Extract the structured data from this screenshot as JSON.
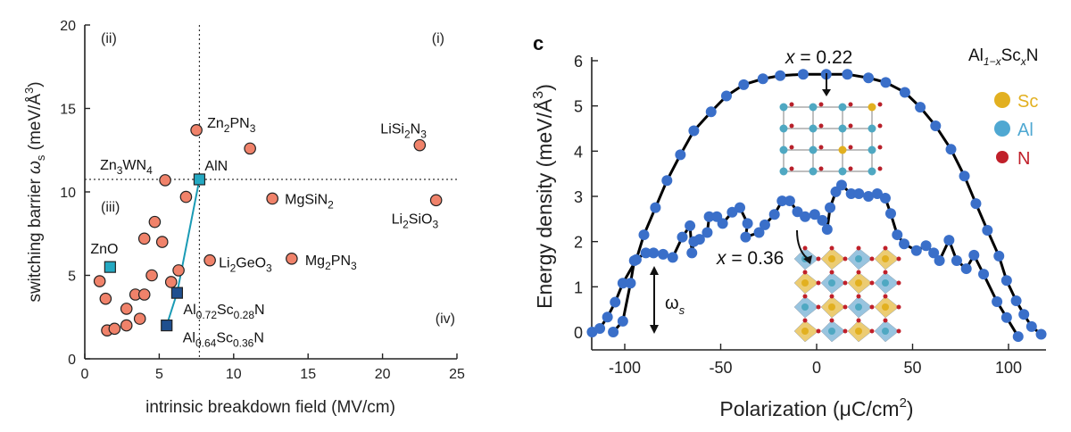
{
  "chart_data": [
    {
      "type": "scatter",
      "xlabel": "intrinsic breakdown field (MV/cm)",
      "ylabel_parts": {
        "pre": "switching barrier ",
        "symbol": "ω",
        "sub": "s",
        "unit_pre": " (meV/Å",
        "unit_sup": "3",
        "unit_post": ")"
      },
      "xlim": [
        0,
        25
      ],
      "ylim": [
        0,
        20
      ],
      "xticks": [
        0,
        5,
        10,
        15,
        20,
        25
      ],
      "yticks": [
        0,
        5,
        10,
        15,
        20
      ],
      "grid": false,
      "reference_lines": {
        "x": 7.7,
        "y": 10.75,
        "style": "dotted"
      },
      "quadrant_labels": [
        {
          "text": "(i)",
          "position": "top-right"
        },
        {
          "text": "(ii)",
          "position": "top-left"
        },
        {
          "text": "(iii)",
          "position": "middle-left"
        },
        {
          "text": "(iv)",
          "position": "bottom-right"
        }
      ],
      "colors": {
        "circle": "#f0826a",
        "aln_zno": "#24a9c2",
        "alscn": "#1f4f8f",
        "connector": "#1a9bb5"
      },
      "points": [
        {
          "x": 7.5,
          "y": 13.7,
          "label": "Zn2PN3",
          "marker": "circle"
        },
        {
          "x": 11.1,
          "y": 12.6,
          "marker": "circle"
        },
        {
          "x": 22.5,
          "y": 12.8,
          "label": "LiSi2N3",
          "marker": "circle"
        },
        {
          "x": 5.4,
          "y": 10.7,
          "label": "Zn3WN4",
          "marker": "circle"
        },
        {
          "x": 6.8,
          "y": 9.7,
          "marker": "circle"
        },
        {
          "x": 12.6,
          "y": 9.6,
          "label": "MgSiN2",
          "marker": "circle"
        },
        {
          "x": 23.6,
          "y": 9.5,
          "label": "Li2SiO3",
          "marker": "circle"
        },
        {
          "x": 4.7,
          "y": 8.2,
          "marker": "circle"
        },
        {
          "x": 4.0,
          "y": 7.2,
          "marker": "circle"
        },
        {
          "x": 5.2,
          "y": 7.0,
          "marker": "circle"
        },
        {
          "x": 8.4,
          "y": 5.9,
          "label": "Li2GeO3",
          "marker": "circle"
        },
        {
          "x": 13.9,
          "y": 6.0,
          "label": "Mg2PN3",
          "marker": "circle"
        },
        {
          "x": 4.5,
          "y": 5.0,
          "marker": "circle"
        },
        {
          "x": 6.3,
          "y": 5.3,
          "marker": "circle"
        },
        {
          "x": 5.8,
          "y": 4.6,
          "marker": "circle"
        },
        {
          "x": 1.0,
          "y": 4.65,
          "marker": "circle"
        },
        {
          "x": 1.4,
          "y": 3.6,
          "marker": "circle"
        },
        {
          "x": 3.4,
          "y": 3.85,
          "marker": "circle"
        },
        {
          "x": 4.0,
          "y": 3.85,
          "marker": "circle"
        },
        {
          "x": 2.8,
          "y": 3.0,
          "marker": "circle"
        },
        {
          "x": 3.7,
          "y": 2.4,
          "marker": "circle"
        },
        {
          "x": 1.5,
          "y": 1.7,
          "marker": "circle"
        },
        {
          "x": 2.0,
          "y": 1.8,
          "marker": "circle"
        },
        {
          "x": 2.8,
          "y": 2.0,
          "marker": "circle"
        },
        {
          "x": 1.7,
          "y": 5.5,
          "label": "ZnO",
          "marker": "square-teal"
        },
        {
          "x": 7.7,
          "y": 10.75,
          "label": "AlN",
          "marker": "square-teal"
        },
        {
          "x": 6.2,
          "y": 3.95,
          "label": "Al0.72Sc0.28N",
          "marker": "square-blue"
        },
        {
          "x": 5.5,
          "y": 2.0,
          "label": "Al0.64Sc0.36N",
          "marker": "square-blue"
        }
      ]
    },
    {
      "type": "line",
      "panel_label": "c",
      "xlabel_parts": {
        "pre": "Polarization (μC/cm",
        "sup": "2",
        "post": ")"
      },
      "ylabel_parts": {
        "pre": "Energy density (meV/Å",
        "sup": "3",
        "post": ")"
      },
      "xlim": [
        -117,
        118
      ],
      "ylim": [
        0,
        6
      ],
      "xticks": [
        -100,
        -50,
        0,
        50,
        100
      ],
      "yticks": [
        0,
        1,
        2,
        3,
        4,
        5,
        6
      ],
      "grid": false,
      "legend": {
        "title_parts": {
          "a": "Al",
          "a_sub": "1−x",
          "b": "Sc",
          "b_sub": "x",
          "c": "N"
        },
        "position": "top-right",
        "entries": [
          {
            "label": "Sc",
            "color": "#e2b020"
          },
          {
            "label": "Al",
            "color": "#4fa8d2"
          },
          {
            "label": "N",
            "color": "#c0202a"
          }
        ]
      },
      "annotations": {
        "x022": "x = 0.22",
        "x036": "x = 0.36",
        "omega": "ω",
        "omega_sub": "s"
      },
      "colors": {
        "marker": "#3a6fc9",
        "line": "#000000"
      },
      "series": [
        {
          "name": "x = 0.22",
          "x": [
            -117,
            -113,
            -109,
            -105,
            -101,
            -94,
            -90,
            -84,
            -78,
            -71,
            -64,
            -55,
            -47,
            -38,
            -28,
            -19,
            -7,
            5,
            16,
            27,
            36,
            46,
            54,
            62,
            70,
            77,
            83,
            89,
            95,
            99,
            104,
            108,
            112,
            117
          ],
          "y": [
            0,
            0.08,
            0.33,
            0.66,
            1.08,
            1.6,
            2.15,
            2.75,
            3.35,
            3.92,
            4.45,
            4.87,
            5.22,
            5.47,
            5.6,
            5.67,
            5.7,
            5.7,
            5.7,
            5.62,
            5.52,
            5.3,
            4.97,
            4.56,
            4.04,
            3.45,
            2.84,
            2.25,
            1.68,
            1.14,
            0.69,
            0.39,
            0.12,
            -0.05
          ]
        },
        {
          "name": "x = 0.36",
          "x": [
            -106,
            -101,
            -97,
            -95,
            -89,
            -85,
            -80,
            -75,
            -70,
            -66,
            -65,
            -64,
            -61,
            -57,
            -56,
            -52,
            -49,
            -44,
            -40,
            -36,
            -37,
            -30,
            -27,
            -22,
            -18,
            -14,
            -10,
            -6,
            -1,
            3,
            5.5,
            7,
            10,
            13,
            18,
            22,
            27,
            31.6,
            35.8,
            38.6,
            42,
            45.6,
            52,
            57,
            61,
            64,
            69,
            73,
            78,
            82,
            87,
            94,
            99,
            105
          ],
          "y": [
            0,
            0.24,
            1.08,
            1.58,
            1.75,
            1.75,
            1.72,
            1.65,
            2.1,
            2.35,
            1.75,
            2.0,
            2.05,
            2.2,
            2.55,
            2.55,
            2.4,
            2.65,
            2.75,
            2.4,
            2.1,
            2.2,
            2.37,
            2.6,
            2.9,
            2.9,
            2.66,
            2.55,
            2.6,
            2.47,
            2.27,
            2.75,
            3.1,
            3.25,
            3.06,
            3.06,
            3.0,
            3.06,
            2.96,
            2.62,
            2.15,
            1.95,
            1.8,
            1.91,
            1.75,
            1.58,
            2.03,
            1.58,
            1.4,
            1.7,
            1.28,
            0.67,
            0.32,
            -0.1
          ]
        }
      ]
    }
  ]
}
